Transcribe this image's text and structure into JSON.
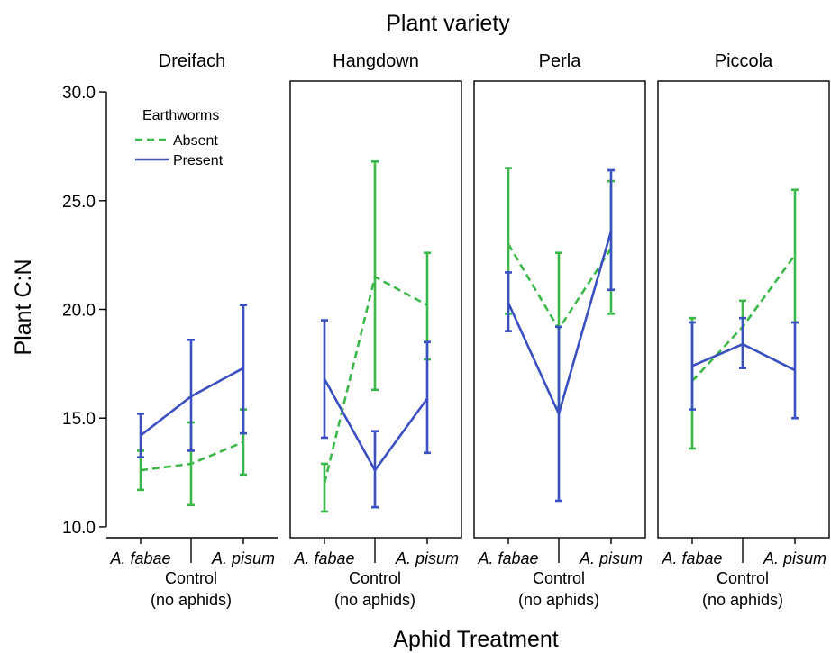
{
  "chart_data": {
    "type": "line",
    "title": "Plant variety",
    "xlabel": "Aphid Treatment",
    "ylabel": "Plant C:N",
    "ylim": [
      9.5,
      30.5
    ],
    "yticks": [
      "10.0",
      "15.0",
      "20.0",
      "25.0",
      "30.0"
    ],
    "x_labels": [
      {
        "text": "A. fabae",
        "italic": true
      },
      {
        "text": "Control",
        "italic": false,
        "line2": "(no aphids)"
      },
      {
        "text": "A. pisum",
        "italic": true
      }
    ],
    "legend": {
      "title": "Earthworms",
      "placement": "top-left",
      "entries": [
        {
          "name": "Absent",
          "style": "dashed",
          "color": "#3cb84a"
        },
        {
          "name": "Present",
          "style": "solid",
          "color": "#3a4fc0"
        }
      ]
    },
    "panels": [
      {
        "name": "Dreifach",
        "series": [
          {
            "name": "Absent",
            "values": [
              12.6,
              12.9,
              13.9
            ],
            "lower": [
              11.7,
              11.0,
              12.4
            ],
            "upper": [
              13.5,
              14.8,
              15.4
            ]
          },
          {
            "name": "Present",
            "values": [
              14.2,
              16.0,
              17.3
            ],
            "lower": [
              13.2,
              13.5,
              14.3
            ],
            "upper": [
              15.2,
              18.6,
              20.2
            ]
          }
        ]
      },
      {
        "name": "Hangdown",
        "series": [
          {
            "name": "Absent",
            "values": [
              12.0,
              21.5,
              20.2
            ],
            "lower": [
              10.7,
              16.3,
              17.7
            ],
            "upper": [
              12.9,
              26.8,
              22.6
            ]
          },
          {
            "name": "Present",
            "values": [
              16.8,
              12.6,
              15.9
            ],
            "lower": [
              14.1,
              10.9,
              13.4
            ],
            "upper": [
              19.5,
              14.4,
              18.5
            ]
          }
        ]
      },
      {
        "name": "Perla",
        "series": [
          {
            "name": "Absent",
            "values": [
              23.0,
              19.1,
              22.8
            ],
            "lower": [
              19.8,
              15.5,
              19.8
            ],
            "upper": [
              26.5,
              22.6,
              25.9
            ]
          },
          {
            "name": "Present",
            "values": [
              20.3,
              15.2,
              23.6
            ],
            "lower": [
              19.0,
              11.2,
              20.9
            ],
            "upper": [
              21.7,
              19.2,
              26.4
            ]
          }
        ]
      },
      {
        "name": "Piccola",
        "series": [
          {
            "name": "Absent",
            "values": [
              16.7,
              19.2,
              22.5
            ],
            "lower": [
              13.6,
              17.3,
              19.4
            ],
            "upper": [
              19.6,
              20.4,
              25.5
            ]
          },
          {
            "name": "Present",
            "values": [
              17.4,
              18.4,
              17.2
            ],
            "lower": [
              15.4,
              17.3,
              15.0
            ],
            "upper": [
              19.4,
              19.6,
              19.4
            ]
          }
        ]
      }
    ]
  }
}
